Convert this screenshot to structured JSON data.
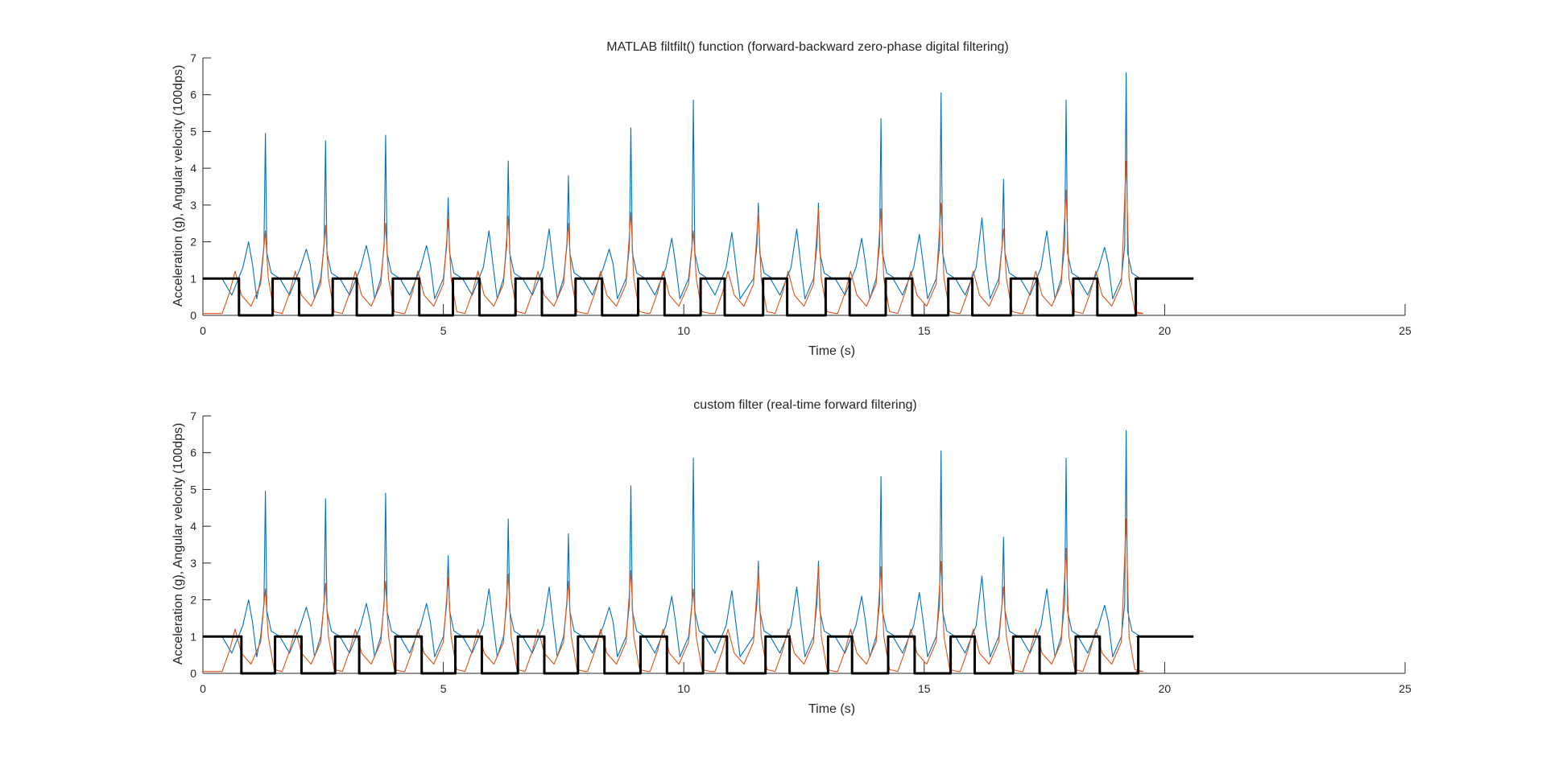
{
  "figure": {
    "panels": [
      {
        "title": "MATLAB filtfilt() function (forward-backward zero-phase digital filtering)",
        "xlabel": "Time (s)",
        "ylabel": "Acceleration (g), Angular velocity (100dps)"
      },
      {
        "title": "custom filter (real-time forward filtering)",
        "xlabel": "Time (s)",
        "ylabel": "Acceleration (g), Angular velocity (100dps)"
      }
    ],
    "x_tick_labels": [
      "0",
      "5",
      "10",
      "15",
      "20",
      "25"
    ],
    "y_tick_labels": [
      "0",
      "1",
      "2",
      "3",
      "4",
      "5",
      "6",
      "7"
    ],
    "colors": {
      "blue": "#0072BD",
      "orange": "#D95319",
      "black": "#000000",
      "axis": "#262626"
    }
  },
  "chart_data": [
    {
      "type": "line",
      "title": "MATLAB filtfilt() function (forward-backward zero-phase digital filtering)",
      "xlabel": "Time (s)",
      "ylabel": "Acceleration (g), Angular velocity (100dps)",
      "xlim": [
        0,
        25
      ],
      "ylim": [
        0,
        7
      ],
      "xticks": [
        0,
        5,
        10,
        15,
        20,
        25
      ],
      "yticks": [
        0,
        1,
        2,
        3,
        4,
        5,
        6,
        7
      ],
      "grid": false,
      "series": [
        {
          "color": "#0072BD",
          "baseline": 1.0,
          "end_x": 19.4,
          "cycles": [
            {
              "peak_x": 1.3,
              "peak_y": 4.95,
              "pre_x": 0.95,
              "pre_y": 2.0
            },
            {
              "peak_x": 2.55,
              "peak_y": 4.75,
              "pre_x": 2.15,
              "pre_y": 1.8
            },
            {
              "peak_x": 3.8,
              "peak_y": 4.9,
              "pre_x": 3.4,
              "pre_y": 1.9
            },
            {
              "peak_x": 5.1,
              "peak_y": 3.2,
              "pre_x": 4.65,
              "pre_y": 1.9
            },
            {
              "peak_x": 6.35,
              "peak_y": 4.2,
              "pre_x": 5.95,
              "pre_y": 2.3
            },
            {
              "peak_x": 7.6,
              "peak_y": 3.8,
              "pre_x": 7.2,
              "pre_y": 2.35
            },
            {
              "peak_x": 8.9,
              "peak_y": 5.1,
              "pre_x": 8.45,
              "pre_y": 1.8
            },
            {
              "peak_x": 10.2,
              "peak_y": 5.85,
              "pre_x": 9.75,
              "pre_y": 2.1
            },
            {
              "peak_x": 11.55,
              "peak_y": 3.05,
              "pre_x": 11.0,
              "pre_y": 2.25
            },
            {
              "peak_x": 12.8,
              "peak_y": 3.05,
              "pre_x": 12.35,
              "pre_y": 2.35
            },
            {
              "peak_x": 14.1,
              "peak_y": 5.35,
              "pre_x": 13.7,
              "pre_y": 2.1
            },
            {
              "peak_x": 15.35,
              "peak_y": 6.05,
              "pre_x": 14.9,
              "pre_y": 2.2
            },
            {
              "peak_x": 16.65,
              "peak_y": 3.7,
              "pre_x": 16.2,
              "pre_y": 2.65
            },
            {
              "peak_x": 17.95,
              "peak_y": 5.85,
              "pre_x": 17.55,
              "pre_y": 2.3
            },
            {
              "peak_x": 19.2,
              "peak_y": 6.6,
              "pre_x": 18.75,
              "pre_y": 1.85
            }
          ]
        },
        {
          "color": "#D95319",
          "baseline": 0.05,
          "end_x": 19.4,
          "cycles": [
            {
              "peak_x": 1.3,
              "peak_y": 2.3
            },
            {
              "peak_x": 2.55,
              "peak_y": 2.45
            },
            {
              "peak_x": 3.8,
              "peak_y": 2.5
            },
            {
              "peak_x": 5.1,
              "peak_y": 2.6
            },
            {
              "peak_x": 6.35,
              "peak_y": 2.7
            },
            {
              "peak_x": 7.6,
              "peak_y": 2.5
            },
            {
              "peak_x": 8.9,
              "peak_y": 2.8
            },
            {
              "peak_x": 10.2,
              "peak_y": 2.3
            },
            {
              "peak_x": 11.55,
              "peak_y": 2.8
            },
            {
              "peak_x": 12.8,
              "peak_y": 2.9
            },
            {
              "peak_x": 14.1,
              "peak_y": 2.9
            },
            {
              "peak_x": 15.35,
              "peak_y": 3.05
            },
            {
              "peak_x": 16.65,
              "peak_y": 2.35
            },
            {
              "peak_x": 17.95,
              "peak_y": 3.4
            },
            {
              "peak_x": 19.2,
              "peak_y": 4.2
            }
          ]
        },
        {
          "color": "#000000",
          "type": "step",
          "x": [
            0,
            0.75,
            0.75,
            1.45,
            1.45,
            2.0,
            2.0,
            2.7,
            2.7,
            3.2,
            3.2,
            3.95,
            3.95,
            4.5,
            4.5,
            5.2,
            5.2,
            5.75,
            5.75,
            6.5,
            6.5,
            7.05,
            7.05,
            7.75,
            7.75,
            8.3,
            8.3,
            9.05,
            9.05,
            9.6,
            9.6,
            10.35,
            10.35,
            10.85,
            10.85,
            11.65,
            11.65,
            12.15,
            12.15,
            12.95,
            12.95,
            13.45,
            13.45,
            14.2,
            14.2,
            14.75,
            14.75,
            15.5,
            15.5,
            16.0,
            16.0,
            16.8,
            16.8,
            17.35,
            17.35,
            18.1,
            18.1,
            18.6,
            18.6,
            19.4,
            19.4,
            20.6
          ],
          "y": [
            1,
            1,
            0,
            0,
            1,
            1,
            0,
            0,
            1,
            1,
            0,
            0,
            1,
            1,
            0,
            0,
            1,
            1,
            0,
            0,
            1,
            1,
            0,
            0,
            1,
            1,
            0,
            0,
            1,
            1,
            0,
            0,
            1,
            1,
            0,
            0,
            1,
            1,
            0,
            0,
            1,
            1,
            0,
            0,
            1,
            1,
            0,
            0,
            1,
            1,
            0,
            0,
            1,
            1,
            0,
            0,
            1,
            1,
            0,
            0,
            1,
            1
          ]
        }
      ]
    },
    {
      "type": "line",
      "title": "custom filter (real-time forward filtering)",
      "xlabel": "Time (s)",
      "ylabel": "Acceleration (g), Angular velocity (100dps)",
      "xlim": [
        0,
        25
      ],
      "ylim": [
        0,
        7
      ],
      "xticks": [
        0,
        5,
        10,
        15,
        20,
        25
      ],
      "yticks": [
        0,
        1,
        2,
        3,
        4,
        5,
        6,
        7
      ],
      "grid": false,
      "series": [
        {
          "color": "#0072BD",
          "baseline": 1.0,
          "end_x": 19.4,
          "cycles": [
            {
              "peak_x": 1.3,
              "peak_y": 4.95,
              "pre_x": 0.95,
              "pre_y": 2.0
            },
            {
              "peak_x": 2.55,
              "peak_y": 4.75,
              "pre_x": 2.15,
              "pre_y": 1.8
            },
            {
              "peak_x": 3.8,
              "peak_y": 4.9,
              "pre_x": 3.4,
              "pre_y": 1.9
            },
            {
              "peak_x": 5.1,
              "peak_y": 3.2,
              "pre_x": 4.65,
              "pre_y": 1.9
            },
            {
              "peak_x": 6.35,
              "peak_y": 4.2,
              "pre_x": 5.95,
              "pre_y": 2.3
            },
            {
              "peak_x": 7.6,
              "peak_y": 3.8,
              "pre_x": 7.2,
              "pre_y": 2.35
            },
            {
              "peak_x": 8.9,
              "peak_y": 5.1,
              "pre_x": 8.45,
              "pre_y": 1.8
            },
            {
              "peak_x": 10.2,
              "peak_y": 5.85,
              "pre_x": 9.75,
              "pre_y": 2.1
            },
            {
              "peak_x": 11.55,
              "peak_y": 3.05,
              "pre_x": 11.0,
              "pre_y": 2.25
            },
            {
              "peak_x": 12.8,
              "peak_y": 3.05,
              "pre_x": 12.35,
              "pre_y": 2.35
            },
            {
              "peak_x": 14.1,
              "peak_y": 5.35,
              "pre_x": 13.7,
              "pre_y": 2.1
            },
            {
              "peak_x": 15.35,
              "peak_y": 6.05,
              "pre_x": 14.9,
              "pre_y": 2.2
            },
            {
              "peak_x": 16.65,
              "peak_y": 3.7,
              "pre_x": 16.2,
              "pre_y": 2.65
            },
            {
              "peak_x": 17.95,
              "peak_y": 5.85,
              "pre_x": 17.55,
              "pre_y": 2.3
            },
            {
              "peak_x": 19.2,
              "peak_y": 6.6,
              "pre_x": 18.75,
              "pre_y": 1.85
            }
          ]
        },
        {
          "color": "#D95319",
          "baseline": 0.05,
          "end_x": 19.4,
          "cycles": [
            {
              "peak_x": 1.3,
              "peak_y": 2.3
            },
            {
              "peak_x": 2.55,
              "peak_y": 2.45
            },
            {
              "peak_x": 3.8,
              "peak_y": 2.5
            },
            {
              "peak_x": 5.1,
              "peak_y": 2.6
            },
            {
              "peak_x": 6.35,
              "peak_y": 2.7
            },
            {
              "peak_x": 7.6,
              "peak_y": 2.5
            },
            {
              "peak_x": 8.9,
              "peak_y": 2.8
            },
            {
              "peak_x": 10.2,
              "peak_y": 2.3
            },
            {
              "peak_x": 11.55,
              "peak_y": 2.8
            },
            {
              "peak_x": 12.8,
              "peak_y": 2.9
            },
            {
              "peak_x": 14.1,
              "peak_y": 2.9
            },
            {
              "peak_x": 15.35,
              "peak_y": 3.05
            },
            {
              "peak_x": 16.65,
              "peak_y": 2.35
            },
            {
              "peak_x": 17.95,
              "peak_y": 3.4
            },
            {
              "peak_x": 19.2,
              "peak_y": 4.2
            }
          ]
        },
        {
          "color": "#000000",
          "type": "step",
          "x": [
            0,
            0.8,
            0.8,
            1.5,
            1.5,
            2.05,
            2.05,
            2.75,
            2.75,
            3.25,
            3.25,
            4.0,
            4.0,
            4.55,
            4.55,
            5.25,
            5.25,
            5.8,
            5.8,
            6.55,
            6.55,
            7.1,
            7.1,
            7.8,
            7.8,
            8.35,
            8.35,
            9.1,
            9.1,
            9.65,
            9.65,
            10.4,
            10.4,
            10.9,
            10.9,
            11.7,
            11.7,
            12.2,
            12.2,
            13.0,
            13.0,
            13.5,
            13.5,
            14.25,
            14.25,
            14.8,
            14.8,
            15.55,
            15.55,
            16.05,
            16.05,
            16.85,
            16.85,
            17.4,
            17.4,
            18.15,
            18.15,
            18.65,
            18.65,
            19.45,
            19.45,
            20.6
          ],
          "y": [
            1,
            1,
            0,
            0,
            1,
            1,
            0,
            0,
            1,
            1,
            0,
            0,
            1,
            1,
            0,
            0,
            1,
            1,
            0,
            0,
            1,
            1,
            0,
            0,
            1,
            1,
            0,
            0,
            1,
            1,
            0,
            0,
            1,
            1,
            0,
            0,
            1,
            1,
            0,
            0,
            1,
            1,
            0,
            0,
            1,
            1,
            0,
            0,
            1,
            1,
            0,
            0,
            1,
            1,
            0,
            0,
            1,
            1,
            0,
            0,
            1,
            1
          ]
        }
      ]
    }
  ]
}
